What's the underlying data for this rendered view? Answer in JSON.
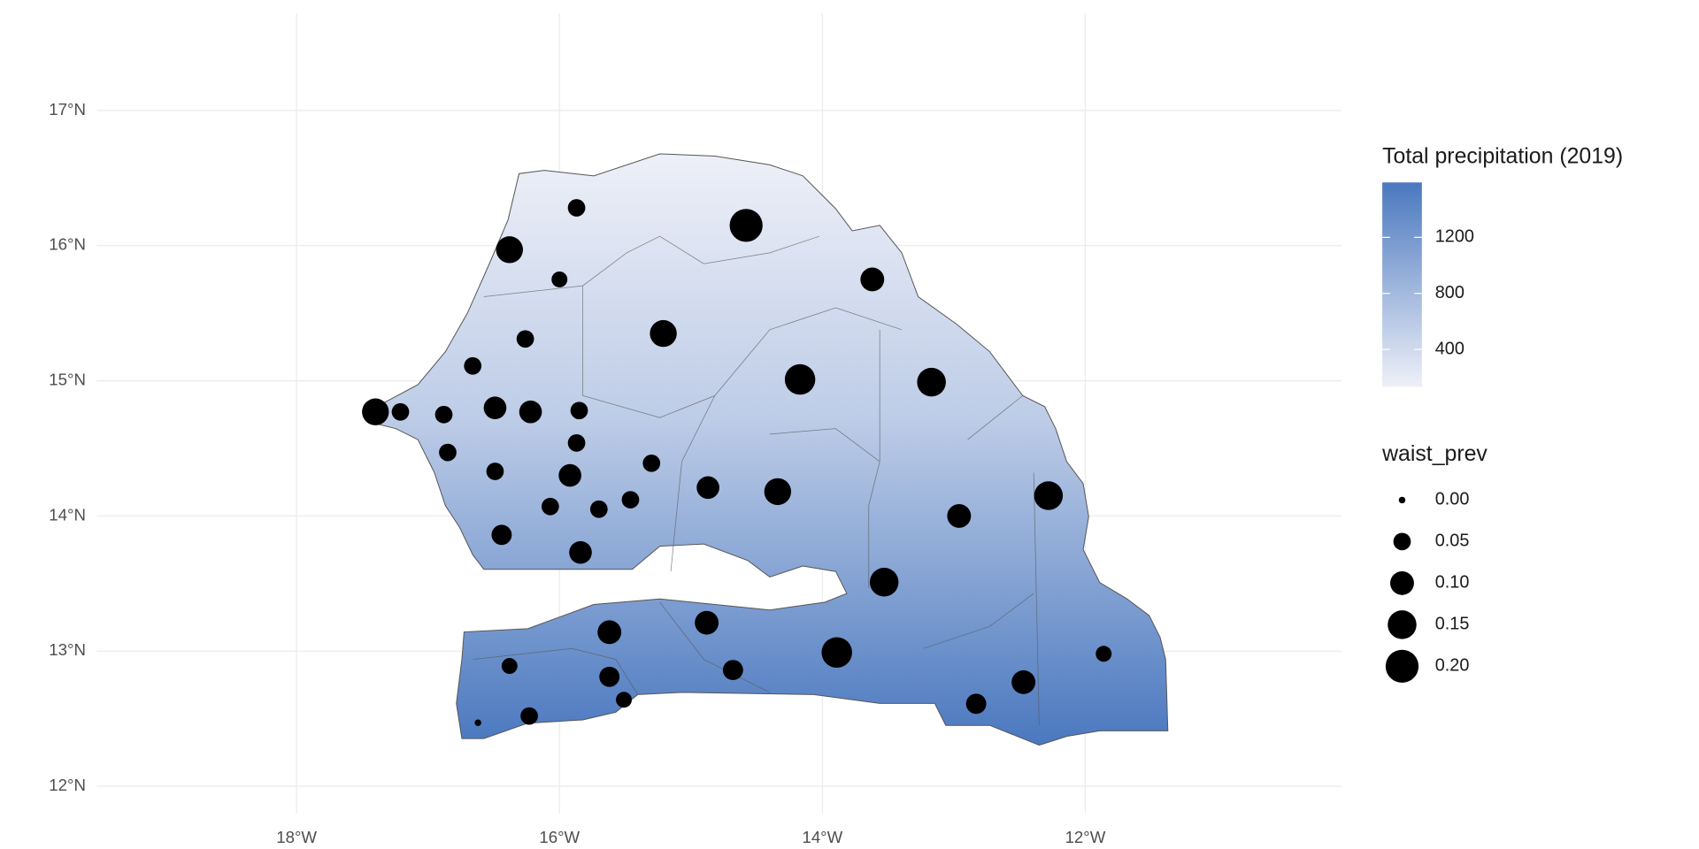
{
  "chart_data": {
    "type": "bubble_map",
    "xlim": [
      -19.52,
      -10.05
    ],
    "ylim": [
      11.8,
      17.72
    ],
    "xticks": [
      {
        "value": -18,
        "label": "18°W"
      },
      {
        "value": -16,
        "label": "16°W"
      },
      {
        "value": -14,
        "label": "14°W"
      },
      {
        "value": -12,
        "label": "12°W"
      }
    ],
    "yticks": [
      {
        "value": 12,
        "label": "12°N"
      },
      {
        "value": 13,
        "label": "13°N"
      },
      {
        "value": 14,
        "label": "14°N"
      },
      {
        "value": 15,
        "label": "15°N"
      },
      {
        "value": 16,
        "label": "16°N"
      },
      {
        "value": 17,
        "label": "17°N"
      }
    ],
    "grid": true,
    "point_color": "#000000",
    "points": {
      "x": [
        -15.87,
        -14.58,
        -16.38,
        -16.0,
        -13.62,
        -15.21,
        -16.26,
        -16.66,
        -14.17,
        -13.17,
        -17.4,
        -17.21,
        -16.88,
        -16.49,
        -16.22,
        -15.85,
        -15.87,
        -16.85,
        -15.3,
        -16.49,
        -15.92,
        -14.87,
        -14.34,
        -12.28,
        -15.46,
        -16.07,
        -15.7,
        -12.96,
        -16.44,
        -15.84,
        -13.53,
        -15.62,
        -14.88,
        -13.89,
        -11.86,
        -16.38,
        -14.68,
        -15.62,
        -12.47,
        -15.51,
        -12.83,
        -16.23,
        -16.62
      ],
      "y": [
        16.28,
        16.15,
        15.97,
        15.75,
        15.75,
        15.35,
        15.31,
        15.11,
        15.01,
        14.99,
        14.77,
        14.77,
        14.75,
        14.8,
        14.77,
        14.78,
        14.54,
        14.47,
        14.39,
        14.33,
        14.3,
        14.21,
        14.18,
        14.15,
        14.12,
        14.07,
        14.05,
        14.0,
        13.86,
        13.73,
        13.51,
        13.14,
        13.21,
        12.99,
        12.98,
        12.89,
        12.86,
        12.81,
        12.77,
        12.64,
        12.61,
        12.52,
        12.47
      ],
      "size": [
        0.05,
        0.2,
        0.13,
        0.04,
        0.1,
        0.13,
        0.05,
        0.05,
        0.17,
        0.15,
        0.13,
        0.05,
        0.05,
        0.09,
        0.09,
        0.05,
        0.05,
        0.05,
        0.05,
        0.05,
        0.09,
        0.09,
        0.13,
        0.15,
        0.05,
        0.05,
        0.05,
        0.1,
        0.07,
        0.09,
        0.15,
        0.1,
        0.1,
        0.17,
        0.04,
        0.04,
        0.07,
        0.07,
        0.1,
        0.04,
        0.07,
        0.05,
        0.0
      ]
    },
    "size_lim": [
      0,
      0.2
    ],
    "fill_legend": {
      "title": "Total precipitation (2019)",
      "lim": [
        133,
        1592
      ],
      "ticks": [
        400,
        800,
        1200
      ],
      "low_color": "#eef0f8",
      "high_color": "#4a78bf"
    },
    "size_legend": {
      "title": "waist_prev",
      "values": [
        {
          "value": 0,
          "label": "0.00"
        },
        {
          "value": 0.05,
          "label": "0.05"
        },
        {
          "value": 0.1,
          "label": "0.10"
        },
        {
          "value": 0.15,
          "label": "0.15"
        },
        {
          "value": 0.2,
          "label": "0.20"
        }
      ]
    }
  }
}
